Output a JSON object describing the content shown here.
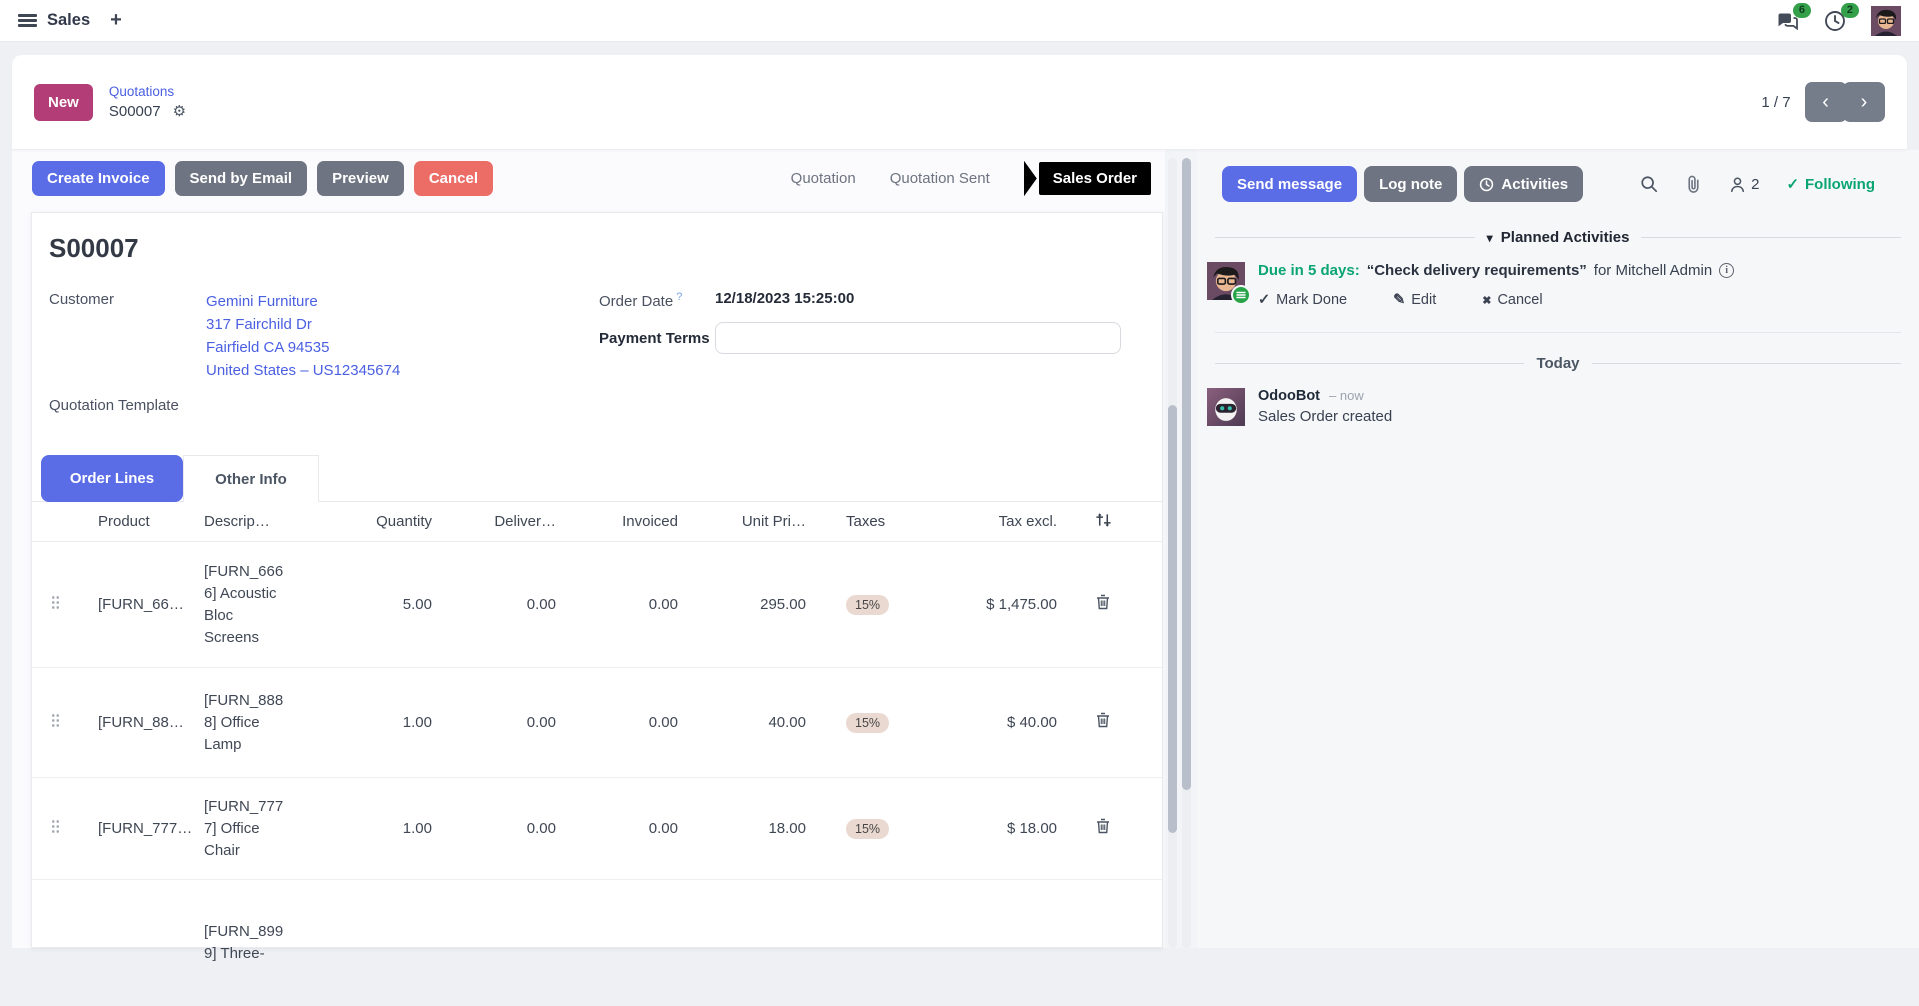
{
  "topbar": {
    "app": "Sales",
    "plus": "+",
    "messages_badge": "6",
    "activities_badge": "2"
  },
  "breadcrumb": {
    "new_label": "New",
    "parent": "Quotations",
    "current": "S00007",
    "pager": "1 / 7"
  },
  "actions": {
    "create_invoice": "Create Invoice",
    "send_by_email": "Send by Email",
    "preview": "Preview",
    "cancel": "Cancel"
  },
  "statusbar": {
    "states": [
      "Quotation",
      "Quotation Sent",
      "Sales Order"
    ],
    "active_index": 2
  },
  "form": {
    "name": "S00007",
    "customer_label": "Customer",
    "customer_name": "Gemini Furniture",
    "customer_street": "317 Fairchild Dr",
    "customer_city": "Fairfield CA 94535",
    "customer_country": "United States – US12345674",
    "quotation_template_label": "Quotation Template",
    "order_date_label": "Order Date",
    "order_date_help": "?",
    "order_date_value": "12/18/2023 15:25:00",
    "payment_terms_label": "Payment Terms",
    "payment_terms_value": ""
  },
  "tabs": [
    {
      "label": "Order Lines",
      "active": true
    },
    {
      "label": "Other Info",
      "active": false
    }
  ],
  "order_lines": {
    "headers": {
      "product": "Product",
      "description": "Descrip…",
      "quantity": "Quantity",
      "delivered": "Deliver…",
      "invoiced": "Invoiced",
      "unit_price": "Unit Pri…",
      "taxes": "Taxes",
      "tax_excl": "Tax excl."
    },
    "rows": [
      {
        "product": "[FURN_66…",
        "description": "[FURN_6666] Acoustic Bloc Screens",
        "quantity": "5.00",
        "delivered": "0.00",
        "invoiced": "0.00",
        "unit_price": "295.00",
        "taxes": "15%",
        "tax_excl": "$ 1,475.00"
      },
      {
        "product": "[FURN_88…",
        "description": "[FURN_8888] Office Lamp",
        "quantity": "1.00",
        "delivered": "0.00",
        "invoiced": "0.00",
        "unit_price": "40.00",
        "taxes": "15%",
        "tax_excl": "$ 40.00"
      },
      {
        "product": "[FURN_777…",
        "description": "[FURN_7777] Office Chair",
        "quantity": "1.00",
        "delivered": "0.00",
        "invoiced": "0.00",
        "unit_price": "18.00",
        "taxes": "15%",
        "tax_excl": "$ 18.00"
      },
      {
        "product": "",
        "description": "[FURN_8999] Three-",
        "quantity": "",
        "delivered": "",
        "invoiced": "",
        "unit_price": "",
        "taxes": "",
        "tax_excl": ""
      }
    ]
  },
  "chatter": {
    "send_message": "Send message",
    "log_note": "Log note",
    "activities_btn": "Activities",
    "followers_count": "2",
    "following": "Following",
    "planned_title": "Planned Activities",
    "activity_due": "Due in 5 days:",
    "activity_summary": "“Check delivery requirements”",
    "activity_for": "for Mitchell Admin",
    "mark_done": "Mark Done",
    "edit": "Edit",
    "cancel": "Cancel",
    "today": "Today",
    "msg_author": "OdooBot",
    "msg_time": "– now",
    "msg_body": "Sales Order created"
  },
  "glyphs": {
    "caret_down": "▾",
    "chev_left": "‹",
    "chev_right": "›",
    "gear": "⚙",
    "check": "✓",
    "cross": "✖",
    "pencil": "✎",
    "info": "i"
  },
  "colors": {
    "accent": "#5b6ce7",
    "link": "#4a5fe2",
    "danger": "#ec6c66",
    "secondary_btn": "#6e7481",
    "new_btn": "#b23d77",
    "success": "#0ba571",
    "badge_green": "#34a04a",
    "tax_badge_bg": "#ead9d1",
    "state_active_bg": "#000000"
  }
}
